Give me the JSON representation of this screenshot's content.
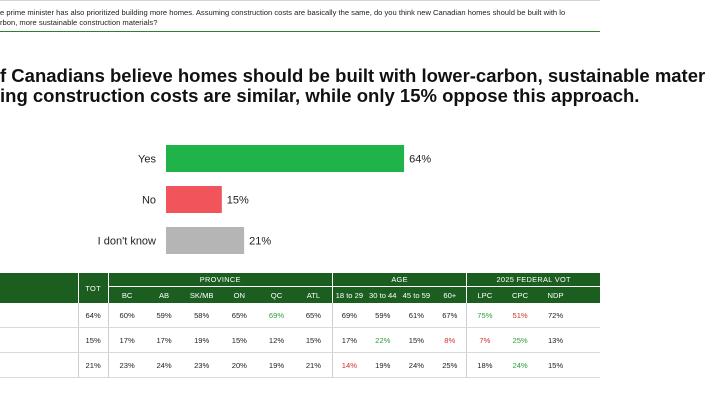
{
  "question_text": [
    "e prime minister has also prioritized building more homes. Assuming construction costs are basically the same, do you think new Canadian homes should be built with lo",
    "rbon, more sustainable construction materials?"
  ],
  "headline": [
    "f Canadians believe homes should be built with lower-carbon, sustainable mater",
    "ing construction costs are similar, while only 15% oppose this approach."
  ],
  "colors": {
    "yes": "#1fb34a",
    "no": "#f2545b",
    "dont_know": "#b5b5b5",
    "header_bg": "#1b5e20",
    "positive": "#2e9e3a",
    "negative": "#d32f2f"
  },
  "chart_data": {
    "type": "bar",
    "orientation": "horizontal",
    "categories": [
      "Yes",
      "No",
      "I don't know"
    ],
    "values": [
      64,
      15,
      21
    ],
    "value_suffix": "%",
    "xlim": [
      0,
      100
    ],
    "grid": false,
    "legend": "none"
  },
  "table": {
    "tot_label": "TOT",
    "groups": [
      {
        "name": "PROVINCE",
        "columns": [
          "BC",
          "AB",
          "SK/MB",
          "ON",
          "QC",
          "ATL"
        ]
      },
      {
        "name": "AGE",
        "columns": [
          "18 to 29",
          "30 to 44",
          "45 to 59",
          "60+"
        ]
      },
      {
        "name": "2025 FEDERAL VOT",
        "columns": [
          "LPC",
          "CPC",
          "NDP",
          ""
        ]
      }
    ],
    "rows": [
      {
        "cells": [
          "64%",
          "60%",
          "59%",
          "58%",
          "65%",
          "69%",
          "65%",
          "69%",
          "59%",
          "61%",
          "67%",
          "75%",
          "51%",
          "72%",
          ""
        ],
        "highlights": [
          "",
          "",
          "",
          "",
          "",
          "hi",
          "",
          "",
          "",
          "",
          "",
          "hi",
          "lo",
          "",
          ""
        ]
      },
      {
        "cells": [
          "15%",
          "17%",
          "17%",
          "19%",
          "15%",
          "12%",
          "15%",
          "17%",
          "22%",
          "15%",
          "8%",
          "7%",
          "25%",
          "13%",
          ""
        ],
        "highlights": [
          "",
          "",
          "",
          "",
          "",
          "",
          "",
          "",
          "hi",
          "",
          "lo",
          "lo",
          "hi",
          "",
          ""
        ]
      },
      {
        "cells": [
          "21%",
          "23%",
          "24%",
          "23%",
          "20%",
          "19%",
          "21%",
          "14%",
          "19%",
          "24%",
          "25%",
          "18%",
          "24%",
          "15%",
          ""
        ],
        "highlights": [
          "",
          "",
          "",
          "",
          "",
          "",
          "",
          "lo",
          "",
          "",
          "",
          "",
          "hi",
          "",
          ""
        ]
      }
    ]
  }
}
